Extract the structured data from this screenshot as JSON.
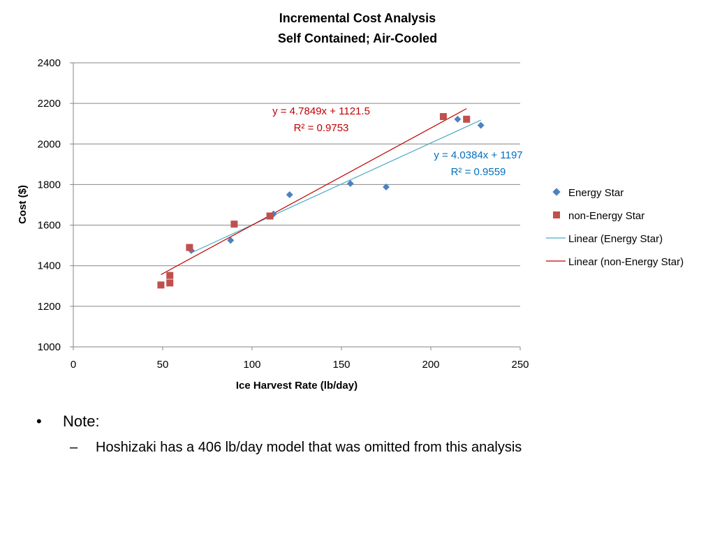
{
  "chart_data": {
    "type": "scatter",
    "title": [
      "Incremental Cost Analysis",
      "Self Contained; Air-Cooled"
    ],
    "xlabel": "Ice Harvest Rate (lb/day)",
    "ylabel": "Cost ($)",
    "xlim": [
      0,
      250
    ],
    "ylim": [
      1000,
      2400
    ],
    "xticks": [
      0,
      50,
      100,
      150,
      200,
      250
    ],
    "yticks": [
      1000,
      1200,
      1400,
      1600,
      1800,
      2000,
      2200,
      2400
    ],
    "grid": "horizontal",
    "legend_position": "right",
    "series": [
      {
        "name": "Energy Star",
        "marker": "diamond",
        "color": "#4F81BD",
        "points": [
          [
            66,
            1475
          ],
          [
            88,
            1525
          ],
          [
            112,
            1655
          ],
          [
            121,
            1750
          ],
          [
            155,
            1805
          ],
          [
            175,
            1788
          ],
          [
            215,
            2122
          ],
          [
            228,
            2092
          ]
        ]
      },
      {
        "name": "non-Energy Star",
        "marker": "square",
        "color": "#C0504D",
        "points": [
          [
            49,
            1305
          ],
          [
            54,
            1315
          ],
          [
            54,
            1352
          ],
          [
            65,
            1490
          ],
          [
            90,
            1605
          ],
          [
            110,
            1645
          ],
          [
            207,
            2135
          ],
          [
            220,
            2122
          ]
        ]
      }
    ],
    "trendlines": [
      {
        "name": "Linear (Energy Star)",
        "color": "#4BACC6",
        "slope": 4.0384,
        "intercept": 1197,
        "x_range": [
          66,
          228
        ],
        "equation": "y = 4.0384x + 1197",
        "r2": "R² = 0.9559"
      },
      {
        "name": "Linear (non-Energy Star)",
        "color": "#C00000",
        "slope": 4.7849,
        "intercept": 1121.5,
        "x_range": [
          49,
          220
        ],
        "equation": "y = 4.7849x + 1121.5",
        "r2": "R² = 0.9753"
      }
    ]
  },
  "notes": {
    "bullet_symbol": "•",
    "bullet_text": "Note:",
    "sub_symbol": "–",
    "sub_text": "Hoshizaki has a 406 lb/day model that was omitted from this analysis"
  }
}
